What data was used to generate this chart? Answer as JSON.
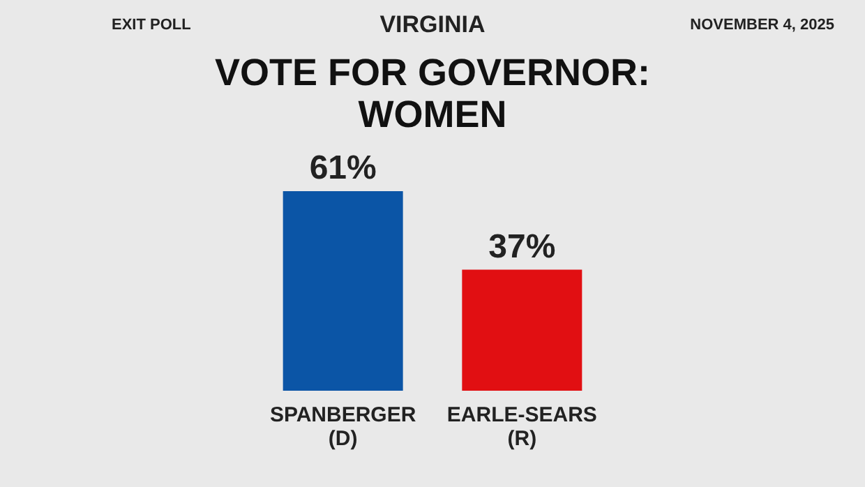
{
  "chart_data": {
    "type": "bar",
    "title": "VOTE FOR GOVERNOR:",
    "subtitle": "WOMEN",
    "annotations": [
      "EXIT POLL",
      "VIRGINIA",
      "NOVEMBER 4, 2025"
    ],
    "categories": [
      "SPANBERGER (D)",
      "EARLE-SEARS (R)"
    ],
    "values": [
      61,
      37
    ],
    "colors": [
      "#0b55a6",
      "#e10f12"
    ],
    "value_labels": [
      "61%",
      "37%"
    ],
    "data_labels": true
  }
}
